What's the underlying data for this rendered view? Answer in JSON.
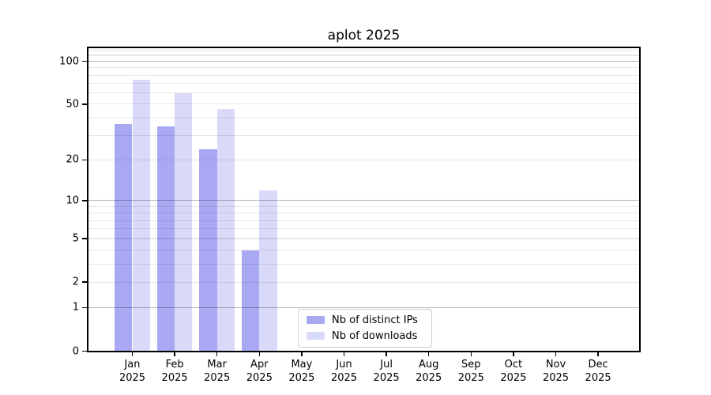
{
  "chart_data": {
    "type": "bar",
    "title": "aplot 2025",
    "categories": [
      "Jan",
      "Feb",
      "Mar",
      "Apr",
      "May",
      "Jun",
      "Jul",
      "Aug",
      "Sep",
      "Oct",
      "Nov",
      "Dec"
    ],
    "x_year_line": "2025",
    "series": [
      {
        "name": "Nb of distinct IPs",
        "color": "#a9a9f3",
        "values": [
          36,
          35,
          24,
          4,
          null,
          null,
          null,
          null,
          null,
          null,
          null,
          null
        ]
      },
      {
        "name": "Nb of downloads",
        "color": "#d9d9f9",
        "values": [
          74,
          60,
          46,
          12,
          null,
          null,
          null,
          null,
          null,
          null,
          null,
          null
        ]
      }
    ],
    "y_axis": {
      "scale": "log1p",
      "ticks": [
        0,
        1,
        2,
        5,
        10,
        20,
        50,
        100
      ],
      "ylim": [
        0,
        125
      ]
    },
    "grid": {
      "major": [
        1,
        10,
        100
      ],
      "minor": [
        2,
        3,
        4,
        5,
        6,
        7,
        8,
        9,
        20,
        30,
        40,
        50,
        60,
        70,
        80,
        90,
        110,
        120
      ]
    },
    "legend": {
      "position": "lower-center",
      "border_color": "#cccccc"
    },
    "frame_color": "#000000",
    "xlabel": "",
    "ylabel": ""
  }
}
